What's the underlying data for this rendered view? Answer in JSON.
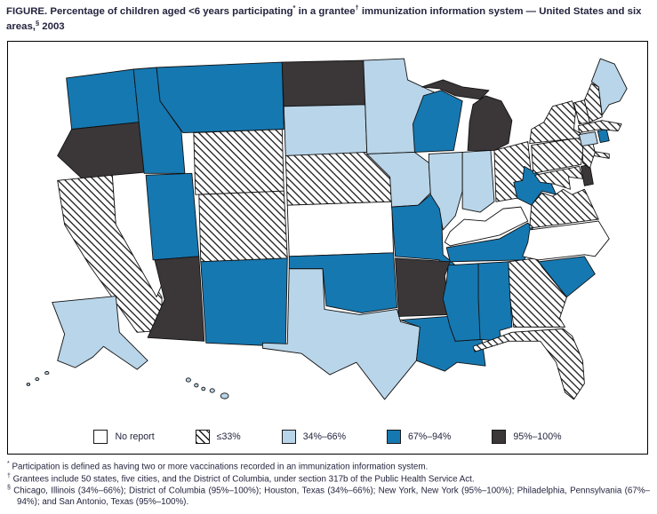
{
  "figure": {
    "title_segments": [
      {
        "text": "FIGURE. Percentage of children aged <6 years participating",
        "sup": false
      },
      {
        "text": "*",
        "sup": true
      },
      {
        "text": " in a grantee",
        "sup": false
      },
      {
        "text": "†",
        "sup": true
      },
      {
        "text": " immunization information system — United States and six areas,",
        "sup": false
      },
      {
        "text": "§",
        "sup": true
      },
      {
        "text": " 2003",
        "sup": false
      }
    ]
  },
  "colors": {
    "no_report": "#ffffff",
    "le33": "hatch",
    "34-66": "#b9d5e9",
    "67-94": "#1678b1",
    "95-100": "#3b3739"
  },
  "legend": {
    "items": [
      {
        "key": "no_report",
        "label": "No report"
      },
      {
        "key": "le33",
        "label": "≤33%"
      },
      {
        "key": "34-66",
        "label": "34%–66%"
      },
      {
        "key": "67-94",
        "label": "67%–94%"
      },
      {
        "key": "95-100",
        "label": "95%–100%"
      }
    ]
  },
  "map": {
    "states": [
      {
        "id": "WA",
        "name": "Washington",
        "category": "67-94"
      },
      {
        "id": "OR",
        "name": "Oregon",
        "category": "95-100"
      },
      {
        "id": "CA",
        "name": "California",
        "category": "le33"
      },
      {
        "id": "NV",
        "name": "Nevada",
        "category": "no_report"
      },
      {
        "id": "ID",
        "name": "Idaho",
        "category": "67-94"
      },
      {
        "id": "MT",
        "name": "Montana",
        "category": "67-94"
      },
      {
        "id": "WY",
        "name": "Wyoming",
        "category": "le33"
      },
      {
        "id": "UT",
        "name": "Utah",
        "category": "67-94"
      },
      {
        "id": "CO",
        "name": "Colorado",
        "category": "le33"
      },
      {
        "id": "AZ",
        "name": "Arizona",
        "category": "95-100"
      },
      {
        "id": "NM",
        "name": "New Mexico",
        "category": "67-94"
      },
      {
        "id": "ND",
        "name": "North Dakota",
        "category": "95-100"
      },
      {
        "id": "SD",
        "name": "South Dakota",
        "category": "34-66"
      },
      {
        "id": "NE",
        "name": "Nebraska",
        "category": "le33"
      },
      {
        "id": "KS",
        "name": "Kansas",
        "category": "no_report"
      },
      {
        "id": "OK",
        "name": "Oklahoma",
        "category": "67-94"
      },
      {
        "id": "TX",
        "name": "Texas",
        "category": "34-66"
      },
      {
        "id": "MN",
        "name": "Minnesota",
        "category": "34-66"
      },
      {
        "id": "IA",
        "name": "Iowa",
        "category": "34-66"
      },
      {
        "id": "MO",
        "name": "Missouri",
        "category": "67-94"
      },
      {
        "id": "AR",
        "name": "Arkansas",
        "category": "95-100"
      },
      {
        "id": "LA",
        "name": "Louisiana",
        "category": "67-94"
      },
      {
        "id": "WI",
        "name": "Wisconsin",
        "category": "67-94"
      },
      {
        "id": "IL",
        "name": "Illinois",
        "category": "34-66"
      },
      {
        "id": "IN",
        "name": "Indiana",
        "category": "34-66"
      },
      {
        "id": "MI",
        "name": "Michigan",
        "category": "95-100"
      },
      {
        "id": "OH",
        "name": "Ohio",
        "category": "le33"
      },
      {
        "id": "KY",
        "name": "Kentucky",
        "category": "no_report"
      },
      {
        "id": "TN",
        "name": "Tennessee",
        "category": "67-94"
      },
      {
        "id": "MS",
        "name": "Mississippi",
        "category": "67-94"
      },
      {
        "id": "AL",
        "name": "Alabama",
        "category": "67-94"
      },
      {
        "id": "GA",
        "name": "Georgia",
        "category": "le33"
      },
      {
        "id": "FL",
        "name": "Florida",
        "category": "le33"
      },
      {
        "id": "SC",
        "name": "South Carolina",
        "category": "67-94"
      },
      {
        "id": "NC",
        "name": "North Carolina",
        "category": "no_report"
      },
      {
        "id": "VA",
        "name": "Virginia",
        "category": "le33"
      },
      {
        "id": "WV",
        "name": "West Virginia",
        "category": "67-94"
      },
      {
        "id": "MD",
        "name": "Maryland",
        "category": "le33"
      },
      {
        "id": "DE",
        "name": "Delaware",
        "category": "95-100"
      },
      {
        "id": "PA",
        "name": "Pennsylvania",
        "category": "le33"
      },
      {
        "id": "NJ",
        "name": "New Jersey",
        "category": "le33"
      },
      {
        "id": "NY",
        "name": "New York",
        "category": "le33"
      },
      {
        "id": "CT",
        "name": "Connecticut",
        "category": "34-66"
      },
      {
        "id": "RI",
        "name": "Rhode Island",
        "category": "67-94"
      },
      {
        "id": "MA",
        "name": "Massachusetts",
        "category": "le33"
      },
      {
        "id": "VT",
        "name": "Vermont",
        "category": "le33"
      },
      {
        "id": "NH",
        "name": "New Hampshire",
        "category": "le33"
      },
      {
        "id": "ME",
        "name": "Maine",
        "category": "34-66"
      },
      {
        "id": "AK",
        "name": "Alaska",
        "category": "34-66"
      },
      {
        "id": "HI",
        "name": "Hawaii",
        "category": "34-66"
      }
    ]
  },
  "footnotes": [
    {
      "symbol": "*",
      "text": "Participation is defined as having two or more vaccinations recorded in an immunization information system."
    },
    {
      "symbol": "†",
      "text": "Grantees include 50 states, five cities, and the District of Columbia, under section 317b of the Public Health Service Act."
    },
    {
      "symbol": "§",
      "text": "Chicago, Illinois (34%–66%); District of Columbia (95%–100%); Houston, Texas (34%–66%); New York, New York (95%–100%); Philadelphia, Pennsylvania (67%–94%); and San Antonio, Texas (95%–100%)."
    }
  ]
}
